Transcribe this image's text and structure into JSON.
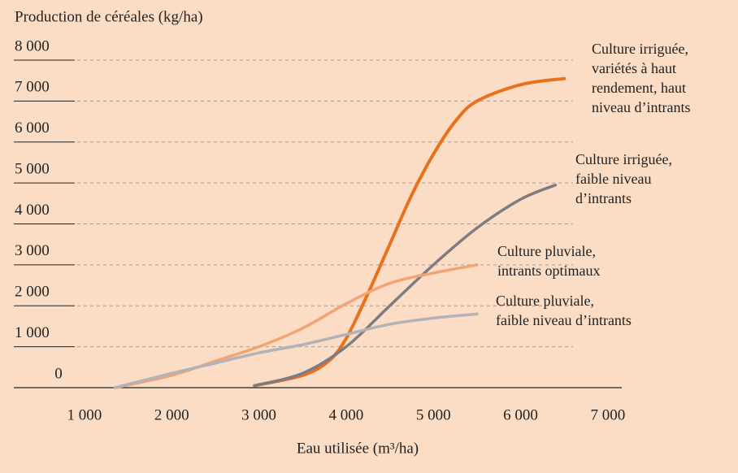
{
  "chart_data": {
    "type": "line",
    "y_label": "Production de céréales (kg/ha)",
    "x_label": "Eau utilisée (m³/ha)",
    "xlim": [
      190,
      7160
    ],
    "ylim": [
      0,
      8000
    ],
    "xticks": [
      {
        "value": 1000,
        "label": "1 000"
      },
      {
        "value": 2000,
        "label": "2 000"
      },
      {
        "value": 3000,
        "label": "3 000"
      },
      {
        "value": 4000,
        "label": "4 000"
      },
      {
        "value": 5000,
        "label": "5 000"
      },
      {
        "value": 6000,
        "label": "6 000"
      },
      {
        "value": 7000,
        "label": "7 000"
      }
    ],
    "yticks": [
      0,
      {
        "value": 1000,
        "label": "1 000"
      },
      {
        "value": 2000,
        "label": "2 000"
      },
      {
        "value": 3000,
        "label": "3 000"
      },
      {
        "value": 4000,
        "label": "4 000"
      },
      {
        "value": 5000,
        "label": "5 000"
      },
      {
        "value": 6000,
        "label": "6 000"
      },
      {
        "value": 7000,
        "label": "7 000"
      },
      {
        "value": 8000,
        "label": "8 000"
      }
    ],
    "grid": true,
    "series": [
      {
        "name": [
          "Culture irriguée,",
          "variétés à haut",
          "rendement, haut",
          "niveau d’intrants"
        ],
        "color": "#e8711e",
        "x": [
          2950,
          3500,
          3800,
          4000,
          4250,
          4500,
          4750,
          5000,
          5250,
          5500,
          6000,
          6500
        ],
        "values": [
          50,
          300,
          650,
          1200,
          2300,
          3500,
          4700,
          5700,
          6500,
          7000,
          7400,
          7550
        ]
      },
      {
        "name": [
          "Culture irriguée,",
          "faible niveau",
          "d’intrants"
        ],
        "color": "#7d7c80",
        "x": [
          2950,
          3500,
          4000,
          4500,
          5000,
          5500,
          6000,
          6400
        ],
        "values": [
          50,
          350,
          1000,
          2000,
          3000,
          3900,
          4600,
          4950
        ]
      },
      {
        "name": [
          "Culture pluviale,",
          "intrants optimaux"
        ],
        "color": "#f2a574",
        "x": [
          1350,
          2000,
          2500,
          3000,
          3500,
          4000,
          4500,
          5000,
          5500
        ],
        "values": [
          0,
          300,
          650,
          1000,
          1450,
          2050,
          2550,
          2800,
          3000
        ]
      },
      {
        "name": [
          "Culture pluviale,",
          "faible niveau d’intrants"
        ],
        "color": "#b2b2b7",
        "x": [
          1350,
          2000,
          2500,
          3000,
          3500,
          4000,
          4500,
          5000,
          5500
        ],
        "values": [
          0,
          350,
          600,
          850,
          1050,
          1300,
          1550,
          1700,
          1800
        ]
      }
    ]
  }
}
